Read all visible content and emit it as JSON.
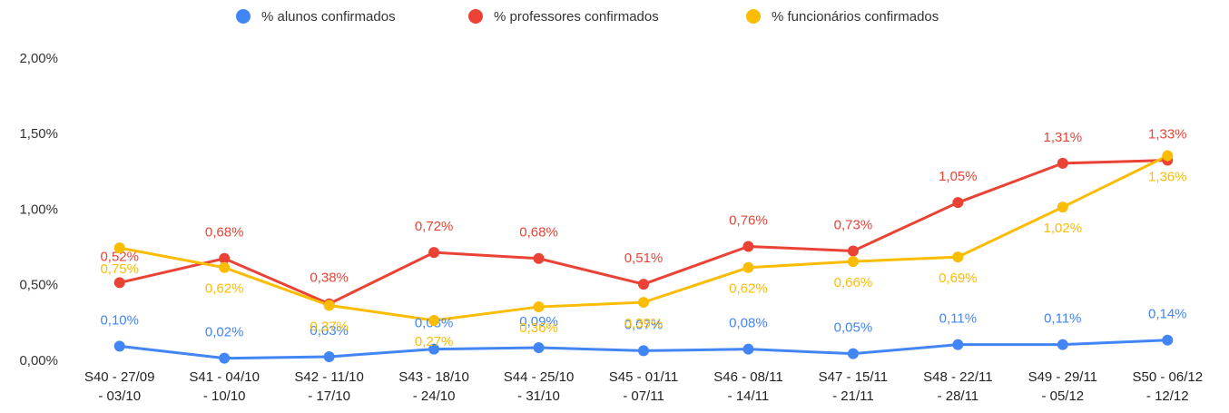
{
  "chart_data": {
    "type": "line",
    "categories": [
      "S40 - 27/09\n- 03/10",
      "S41 - 04/10\n- 10/10",
      "S42 - 11/10\n- 17/10",
      "S43 - 18/10\n- 24/10",
      "S44 - 25/10\n- 31/10",
      "S45 - 01/11\n- 07/11",
      "S46 - 08/11\n- 14/11",
      "S47 - 15/11\n- 21/11",
      "S48 - 22/11\n- 28/11",
      "S49 - 29/11\n- 05/12",
      "S50 - 06/12\n- 12/12"
    ],
    "series": [
      {
        "name": "% alunos confirmados",
        "color": "#4285f4",
        "values": [
          0.1,
          0.02,
          0.03,
          0.08,
          0.09,
          0.07,
          0.08,
          0.05,
          0.11,
          0.11,
          0.14
        ],
        "value_labels": [
          "0,10%",
          "0,02%",
          "0,03%",
          "0,08%",
          "0,09%",
          "0,07%",
          "0,08%",
          "0,05%",
          "0,11%",
          "0,11%",
          "0,14%"
        ]
      },
      {
        "name": "% professores confirmados",
        "color": "#ea4335",
        "values": [
          0.52,
          0.68,
          0.38,
          0.72,
          0.68,
          0.51,
          0.76,
          0.73,
          1.05,
          1.31,
          1.33
        ],
        "value_labels": [
          "0,52%",
          "0,68%",
          "0,38%",
          "0,72%",
          "0,68%",
          "0,51%",
          "0,76%",
          "0,73%",
          "1,05%",
          "1,31%",
          "1,33%"
        ]
      },
      {
        "name": "% funcionários confirmados",
        "color": "#fbbc04",
        "values": [
          0.75,
          0.62,
          0.37,
          0.27,
          0.36,
          0.39,
          0.62,
          0.66,
          0.69,
          1.02,
          1.36
        ],
        "value_labels": [
          "0,75%",
          "0,62%",
          "0,37%",
          "0,27%",
          "0,36%",
          "0,39%",
          "0,62%",
          "0,66%",
          "0,69%",
          "1,02%",
          "1,36%"
        ]
      }
    ],
    "ylim": [
      0,
      2
    ],
    "yticks": [
      {
        "value": 0,
        "label": "0,00%"
      },
      {
        "value": 0.5,
        "label": "0,50%"
      },
      {
        "value": 1,
        "label": "1,00%"
      },
      {
        "value": 1.5,
        "label": "1,50%"
      },
      {
        "value": 2,
        "label": "2,00%"
      }
    ],
    "grid": false,
    "legend": "top"
  }
}
